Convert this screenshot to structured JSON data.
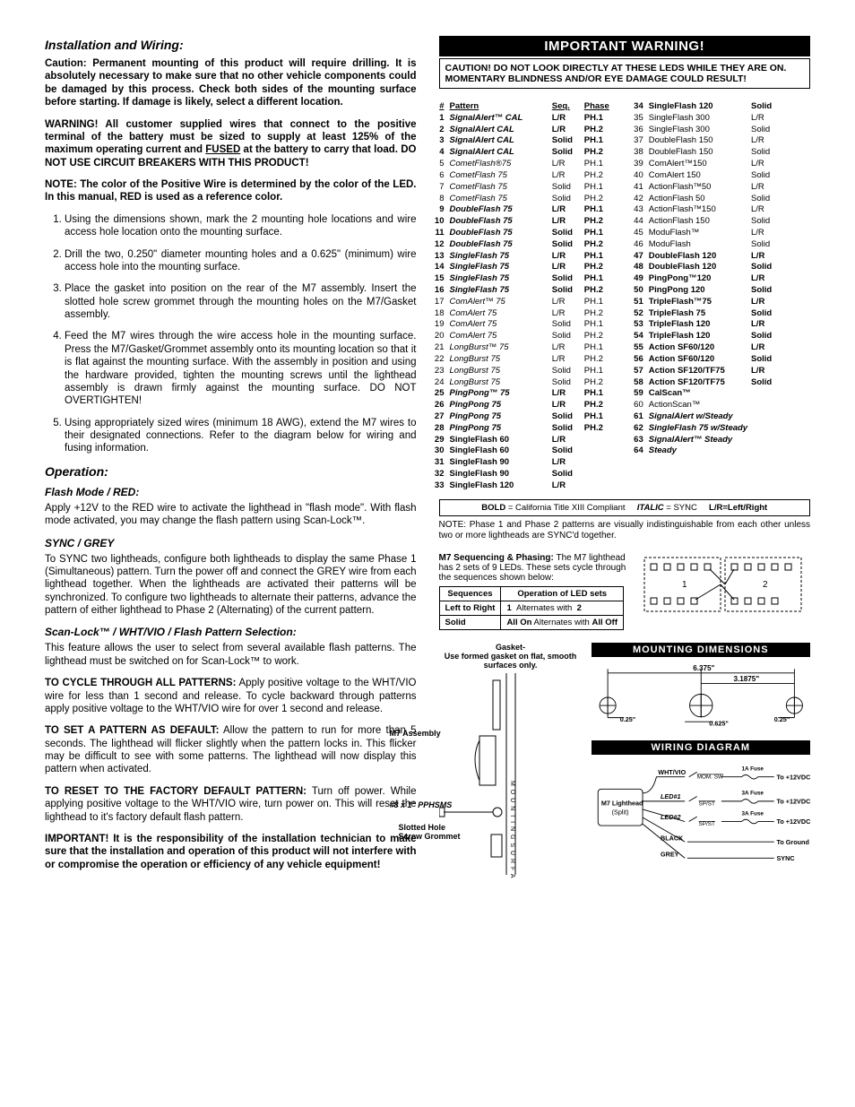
{
  "left": {
    "h_install": "Installation and Wiring:",
    "p_caution": "Caution: Permanent mounting of this product will require drilling. It is absolutely necessary to make sure that no other vehicle components could be damaged by this process. Check both sides of the mounting surface before starting. If damage is likely, select a different location.",
    "p_warning": "WARNING! All customer supplied wires that connect to the positive terminal of the battery must be sized to supply at least 125% of the maximum operating current and FUSED at the battery to carry that load. DO NOT USE CIRCUIT BREAKERS WITH THIS PRODUCT!",
    "p_note": "NOTE: The color of the Positive Wire is determined by the color of the LED. In this manual, RED is used as a reference color.",
    "steps": [
      "Using the dimensions shown, mark the 2 mounting hole locations and wire access hole location onto the mounting surface.",
      "Drill the two, 0.250\" diameter mounting holes and a 0.625\" (minimum) wire access hole into the mounting surface.",
      "Place the gasket into position on the rear of the M7 assembly. Insert the slotted hole screw grommet through the mounting holes on the M7/Gasket assembly.",
      "Feed the M7 wires through the wire access hole in the mounting surface. Press the M7/Gasket/Grommet assembly onto its mounting location so that it is flat against the mounting surface. With the assembly in position and using the hardware provided, tighten the mounting screws until the lighthead assembly is drawn firmly against the mounting surface. DO NOT OVERTIGHTEN!",
      "Using appropriately sized wires (minimum 18 AWG), extend the M7 wires to their designated connections. Refer to the diagram below for wiring and fusing information."
    ],
    "h_op": "Operation:",
    "h_flash": "Flash Mode / RED:",
    "p_flash": "Apply +12V to the RED wire to activate the lighthead in \"flash mode\". With flash mode activated, you may change the flash pattern using Scan-Lock™.",
    "h_sync": "SYNC / GREY",
    "p_sync": "To SYNC two lightheads, configure both lightheads to display the same Phase 1 (Simultaneous) pattern. Turn the power off and connect the GREY wire from each lighthead together. When the lightheads are activated their patterns will be synchronized. To configure two lightheads to alternate their patterns, advance the pattern of either lighthead to Phase 2 (Alternating) of the current pattern.",
    "h_scan": "Scan-Lock™ / WHT/VIO / Flash Pattern Selection:",
    "p_scan": "This feature allows the user to select from several available flash patterns. The lighthead must be switched on for Scan-Lock™ to work.",
    "p_cycle_lead": "TO CYCLE THROUGH ALL PATTERNS:",
    "p_cycle": " Apply positive voltage to the WHT/VIO wire for less than 1 second and release. To cycle backward through patterns apply positive voltage to the WHT/VIO wire for over 1 second and release.",
    "p_set_lead": "TO SET A PATTERN AS DEFAULT:",
    "p_set": " Allow the pattern to run for more than 5 seconds. The lighthead will flicker slightly when the pattern locks in. This flicker may be difficult to see with some patterns. The lighthead will now display this pattern when activated.",
    "p_reset_lead": "TO RESET TO THE FACTORY DEFAULT PATTERN:",
    "p_reset": " Turn off power. While applying positive voltage to the WHT/VIO wire, turn power on. This will reset the lighthead to it's factory default flash pattern.",
    "p_important": "IMPORTANT! It is the responsibility of the installation technician to make sure that the installation and operation of this product will not interfere with or compromise the operation or efficiency of any vehicle equipment!"
  },
  "right": {
    "warn_title": "IMPORTANT WARNING!",
    "warn_body": "CAUTION! DO NOT LOOK DIRECTLY AT THESE LEDS WHILE THEY ARE ON. MOMENTARY BLINDNESS AND/OR EYE DAMAGE COULD RESULT!",
    "hdr1": {
      "n": "#",
      "name": "Pattern",
      "seq": "Seq.",
      "ph": "Phase"
    },
    "patterns1": [
      {
        "n": 1,
        "name": "SignalAlert™ CAL",
        "seq": "L/R",
        "ph": "PH.1",
        "b": 1,
        "i": 1
      },
      {
        "n": 2,
        "name": "SignalAlert CAL",
        "seq": "L/R",
        "ph": "PH.2",
        "b": 1,
        "i": 1
      },
      {
        "n": 3,
        "name": "SignalAlert CAL",
        "seq": "Solid",
        "ph": "PH.1",
        "b": 1,
        "i": 1
      },
      {
        "n": 4,
        "name": "SignalAlert CAL",
        "seq": "Solid",
        "ph": "PH.2",
        "b": 1,
        "i": 1
      },
      {
        "n": 5,
        "name": "CometFlash®75",
        "seq": "L/R",
        "ph": "PH.1",
        "i": 1
      },
      {
        "n": 6,
        "name": "CometFlash 75",
        "seq": "L/R",
        "ph": "PH.2",
        "i": 1
      },
      {
        "n": 7,
        "name": "CometFlash 75",
        "seq": "Solid",
        "ph": "PH.1",
        "i": 1
      },
      {
        "n": 8,
        "name": "CometFlash 75",
        "seq": "Solid",
        "ph": "PH.2",
        "i": 1
      },
      {
        "n": 9,
        "name": "DoubleFlash 75",
        "seq": "L/R",
        "ph": "PH.1",
        "b": 1,
        "i": 1
      },
      {
        "n": 10,
        "name": "DoubleFlash 75",
        "seq": "L/R",
        "ph": "PH.2",
        "b": 1,
        "i": 1
      },
      {
        "n": 11,
        "name": "DoubleFlash 75",
        "seq": "Solid",
        "ph": "PH.1",
        "b": 1,
        "i": 1
      },
      {
        "n": 12,
        "name": "DoubleFlash 75",
        "seq": "Solid",
        "ph": "PH.2",
        "b": 1,
        "i": 1
      },
      {
        "n": 13,
        "name": "SingleFlash 75",
        "seq": "L/R",
        "ph": "PH.1",
        "b": 1,
        "i": 1
      },
      {
        "n": 14,
        "name": "SingleFlash 75",
        "seq": "L/R",
        "ph": "PH.2",
        "b": 1,
        "i": 1
      },
      {
        "n": 15,
        "name": "SingleFlash 75",
        "seq": "Solid",
        "ph": "PH.1",
        "b": 1,
        "i": 1
      },
      {
        "n": 16,
        "name": "SingleFlash 75",
        "seq": "Solid",
        "ph": "PH.2",
        "b": 1,
        "i": 1
      },
      {
        "n": 17,
        "name": "ComAlert™ 75",
        "seq": "L/R",
        "ph": "PH.1",
        "i": 1
      },
      {
        "n": 18,
        "name": "ComAlert 75",
        "seq": "L/R",
        "ph": "PH.2",
        "i": 1
      },
      {
        "n": 19,
        "name": "ComAlert 75",
        "seq": "Solid",
        "ph": "PH.1",
        "i": 1
      },
      {
        "n": 20,
        "name": "ComAlert 75",
        "seq": "Solid",
        "ph": "PH.2",
        "i": 1
      },
      {
        "n": 21,
        "name": "LongBurst™ 75",
        "seq": "L/R",
        "ph": "PH.1",
        "i": 1
      },
      {
        "n": 22,
        "name": "LongBurst 75",
        "seq": "L/R",
        "ph": "PH.2",
        "i": 1
      },
      {
        "n": 23,
        "name": "LongBurst 75",
        "seq": "Solid",
        "ph": "PH.1",
        "i": 1
      },
      {
        "n": 24,
        "name": "LongBurst 75",
        "seq": "Solid",
        "ph": "PH.2",
        "i": 1
      },
      {
        "n": 25,
        "name": "PingPong™ 75",
        "seq": "L/R",
        "ph": "PH.1",
        "b": 1,
        "i": 1
      },
      {
        "n": 26,
        "name": "PingPong 75",
        "seq": "L/R",
        "ph": "PH.2",
        "b": 1,
        "i": 1
      },
      {
        "n": 27,
        "name": "PingPong 75",
        "seq": "Solid",
        "ph": "PH.1",
        "b": 1,
        "i": 1
      },
      {
        "n": 28,
        "name": "PingPong 75",
        "seq": "Solid",
        "ph": "PH.2",
        "b": 1,
        "i": 1
      },
      {
        "n": 29,
        "name": "SingleFlash 60",
        "seq": "L/R",
        "ph": "",
        "b": 1
      },
      {
        "n": 30,
        "name": "SingleFlash 60",
        "seq": "Solid",
        "ph": "",
        "b": 1
      },
      {
        "n": 31,
        "name": "SingleFlash 90",
        "seq": "L/R",
        "ph": "",
        "b": 1
      },
      {
        "n": 32,
        "name": "SingleFlash 90",
        "seq": "Solid",
        "ph": "",
        "b": 1
      },
      {
        "n": 33,
        "name": "SingleFlash 120",
        "seq": "L/R",
        "ph": "",
        "b": 1
      }
    ],
    "patterns2": [
      {
        "n": 34,
        "name": "SingleFlash 120",
        "seq": "Solid",
        "b": 1
      },
      {
        "n": 35,
        "name": "SingleFlash 300",
        "seq": "L/R"
      },
      {
        "n": 36,
        "name": "SingleFlash 300",
        "seq": "Solid"
      },
      {
        "n": 37,
        "name": "DoubleFlash 150",
        "seq": "L/R"
      },
      {
        "n": 38,
        "name": "DoubleFlash 150",
        "seq": "Solid"
      },
      {
        "n": 39,
        "name": "ComAlert™150",
        "seq": "L/R"
      },
      {
        "n": 40,
        "name": "ComAlert 150",
        "seq": "Solid"
      },
      {
        "n": 41,
        "name": "ActionFlash™50",
        "seq": "L/R"
      },
      {
        "n": 42,
        "name": "ActionFlash 50",
        "seq": "Solid"
      },
      {
        "n": 43,
        "name": "ActionFlash™150",
        "seq": "L/R"
      },
      {
        "n": 44,
        "name": "ActionFlash 150",
        "seq": "Solid"
      },
      {
        "n": 45,
        "name": "ModuFlash™",
        "seq": "L/R"
      },
      {
        "n": 46,
        "name": "ModuFlash",
        "seq": "Solid"
      },
      {
        "n": 47,
        "name": "DoubleFlash 120",
        "seq": "L/R",
        "b": 1
      },
      {
        "n": 48,
        "name": "DoubleFlash 120",
        "seq": "Solid",
        "b": 1
      },
      {
        "n": 49,
        "name": "PingPong™120",
        "seq": "L/R",
        "b": 1
      },
      {
        "n": 50,
        "name": "PingPong 120",
        "seq": "Solid",
        "b": 1
      },
      {
        "n": 51,
        "name": "TripleFlash™75",
        "seq": "L/R",
        "b": 1
      },
      {
        "n": 52,
        "name": "TripleFlash 75",
        "seq": "Solid",
        "b": 1
      },
      {
        "n": 53,
        "name": "TripleFlash 120",
        "seq": "L/R",
        "b": 1
      },
      {
        "n": 54,
        "name": "TripleFlash 120",
        "seq": "Solid",
        "b": 1
      },
      {
        "n": 55,
        "name": "Action SF60/120",
        "seq": "L/R",
        "b": 1
      },
      {
        "n": 56,
        "name": "Action SF60/120",
        "seq": "Solid",
        "b": 1
      },
      {
        "n": 57,
        "name": "Action SF120/TF75",
        "seq": "L/R",
        "b": 1
      },
      {
        "n": 58,
        "name": "Action SF120/TF75",
        "seq": "Solid",
        "b": 1
      },
      {
        "n": 59,
        "name": "CalScan™",
        "seq": "",
        "b": 1
      },
      {
        "n": 60,
        "name": "ActionScan™",
        "seq": ""
      },
      {
        "n": 61,
        "name": "SignalAlert w/Steady",
        "seq": "",
        "b": 1,
        "i": 1
      },
      {
        "n": 62,
        "name": "SingleFlash 75 w/Steady",
        "seq": "",
        "b": 1,
        "i": 1
      },
      {
        "n": 63,
        "name": "SignalAlert™ Steady",
        "seq": "",
        "b": 1,
        "i": 1
      },
      {
        "n": 64,
        "name": "Steady",
        "seq": "",
        "b": 1,
        "i": 1
      }
    ],
    "legend": "BOLD = California Title XIII Compliant      ITALIC = SYNC     L/R=Left/Right",
    "note": "NOTE: Phase 1 and Phase 2 patterns are visually indistinguishable from each other unless two or more lightheads are SYNC'd together.",
    "seq_lead": "M7 Sequencing & Phasing:",
    "seq_text": " The M7 lighthead has 2 sets of 9 LEDs. These sets cycle through the sequences shown below:",
    "seq_h1": "Sequences",
    "seq_h2": "Operation of LED sets",
    "seq_r1a": "Left to Right",
    "seq_r1b": "1   Alternates with   2",
    "seq_r2a": "Solid",
    "seq_r2b": "All On Alternates with All Off",
    "gasket_lbl": "Gasket-\nUse formed gasket on flat, smooth surfaces only.",
    "m7_lbl": "M7 Assembly",
    "screw_lbl": "#8 x 1\" PPHSMS",
    "grommet_lbl": "Slotted Hole Screw Grommet",
    "panel_mount": "MOUNTING DIMENSIONS",
    "panel_wire": "WIRING DIAGRAM",
    "dims": {
      "w": "6.375\"",
      "w2": "3.1875\"",
      "d1": "0.25\"",
      "d2": "0.625\"",
      "d3": "0.25\""
    },
    "wires": {
      "whtvio": "WHT/VIO",
      "mom": "MOM. SW",
      "f1": "1A Fuse",
      "v": "To +12VDC",
      "led1": "LED#1",
      "spst": "SP/ST",
      "f3": "3A Fuse",
      "led2": "LED#2",
      "m7s": "M7 Lighthead (Split)",
      "blk": "BLACK",
      "gnd": "To Ground",
      "grey": "GREY",
      "sync": "SYNC",
      "ms": "MOUNTING SURFACE"
    }
  }
}
